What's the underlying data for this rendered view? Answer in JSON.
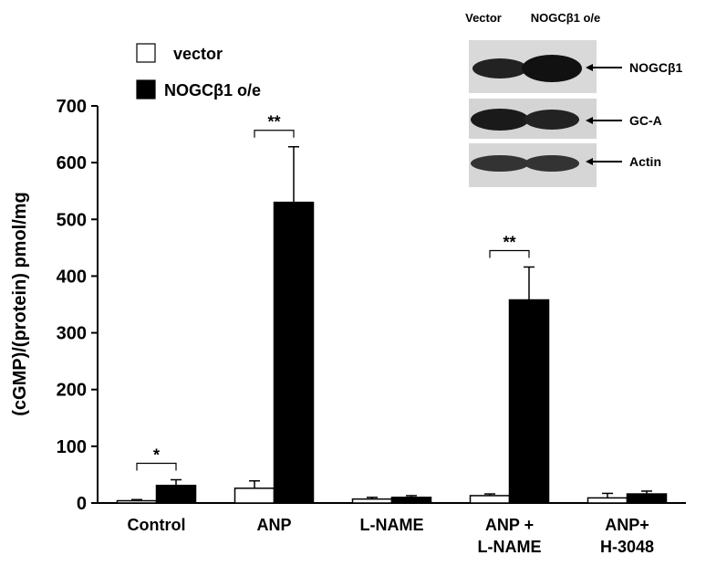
{
  "chart_data": {
    "type": "bar",
    "y_label": "(cGMP)/(protein) pmol/mg",
    "categories": [
      "Control",
      "ANP",
      "L-NAME",
      "ANP +\nL-NAME",
      "ANP+\nH-3048"
    ],
    "series": [
      {
        "name": "vector",
        "color": "#ffffff",
        "values": [
          4,
          26,
          7,
          13,
          9
        ],
        "errors": [
          2,
          13,
          3,
          3,
          8
        ]
      },
      {
        "name": "NOGCβ1 o/e",
        "color": "#000000",
        "values": [
          31,
          530,
          10,
          358,
          16
        ],
        "errors": [
          10,
          98,
          3,
          58,
          5
        ]
      }
    ],
    "ylim": [
      0,
      700
    ],
    "yticks": [
      0,
      100,
      200,
      300,
      400,
      500,
      600,
      700
    ],
    "annotations": [
      {
        "text": "*",
        "category": 0
      },
      {
        "text": "**",
        "category": 1
      },
      {
        "text": "**",
        "category": 3
      }
    ],
    "inset": {
      "columns": [
        "Vector",
        "NOGCβ1 o/e"
      ],
      "bands": [
        "NOGCβ1",
        "GC-A",
        "Actin"
      ]
    }
  }
}
